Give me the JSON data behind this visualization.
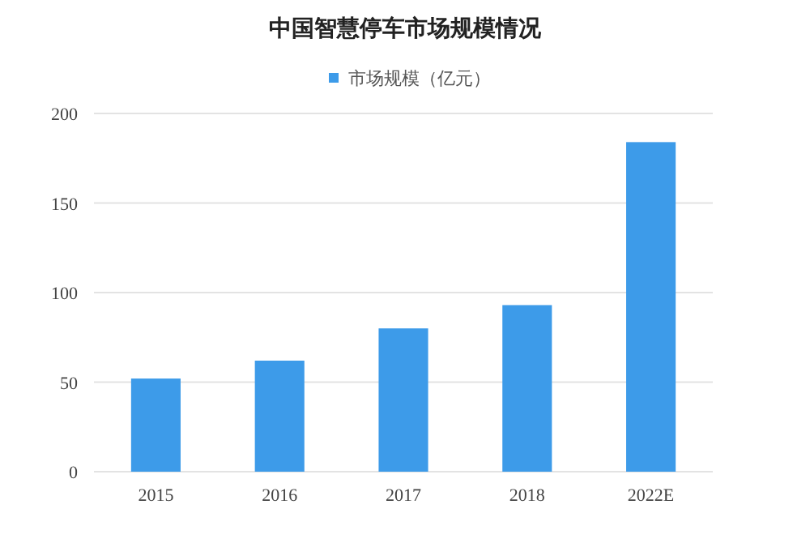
{
  "chart_data": {
    "type": "bar",
    "title": "中国智慧停车市场规模情况",
    "categories": [
      "2015",
      "2016",
      "2017",
      "2018",
      "2022E"
    ],
    "series": [
      {
        "name": "市场规模（亿元）",
        "color": "#3d9be9",
        "values": [
          52,
          62,
          80,
          93,
          184
        ]
      }
    ],
    "ylim": [
      0,
      200
    ],
    "yticks": [
      0,
      50,
      100,
      150,
      200
    ],
    "grid": "y",
    "legend": "top"
  }
}
